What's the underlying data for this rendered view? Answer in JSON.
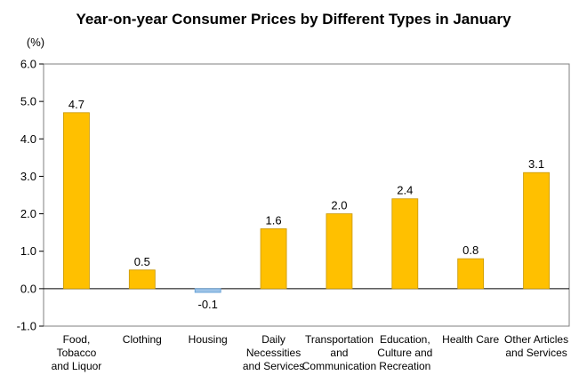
{
  "chart_data": {
    "type": "bar",
    "title": "Year-on-year Consumer Prices by Different Types in January",
    "unit_label": "(%)",
    "xlabel": "",
    "ylabel": "",
    "ylim": [
      -1.0,
      6.0
    ],
    "yticks": [
      "6.0",
      "5.0",
      "4.0",
      "3.0",
      "2.0",
      "1.0",
      "0.0",
      "-1.0"
    ],
    "ytick_values": [
      6,
      5,
      4,
      3,
      2,
      1,
      0,
      -1
    ],
    "grid": false,
    "categories": [
      [
        "Food,",
        "Tobacco",
        "and Liquor"
      ],
      [
        "Clothing"
      ],
      [
        "Housing"
      ],
      [
        "Daily",
        "Necessities",
        "and Services"
      ],
      [
        "Transportation",
        "and",
        "Communication"
      ],
      [
        "Education,",
        "Culture and",
        "Recreation"
      ],
      [
        "Health Care"
      ],
      [
        "Other Articles",
        "and Services"
      ]
    ],
    "values": [
      4.7,
      0.5,
      -0.1,
      1.6,
      2.0,
      2.4,
      0.8,
      3.1
    ],
    "value_labels": [
      "4.7",
      "0.5",
      "-0.1",
      "1.6",
      "2.0",
      "2.4",
      "0.8",
      "3.1"
    ],
    "colors": {
      "positive": "#FFC000",
      "positive_stroke": "#C99700",
      "negative": "#9DC3E6",
      "negative_stroke": "#5B9BD5",
      "axis": "#000000",
      "frame": "#7F7F7F"
    }
  }
}
